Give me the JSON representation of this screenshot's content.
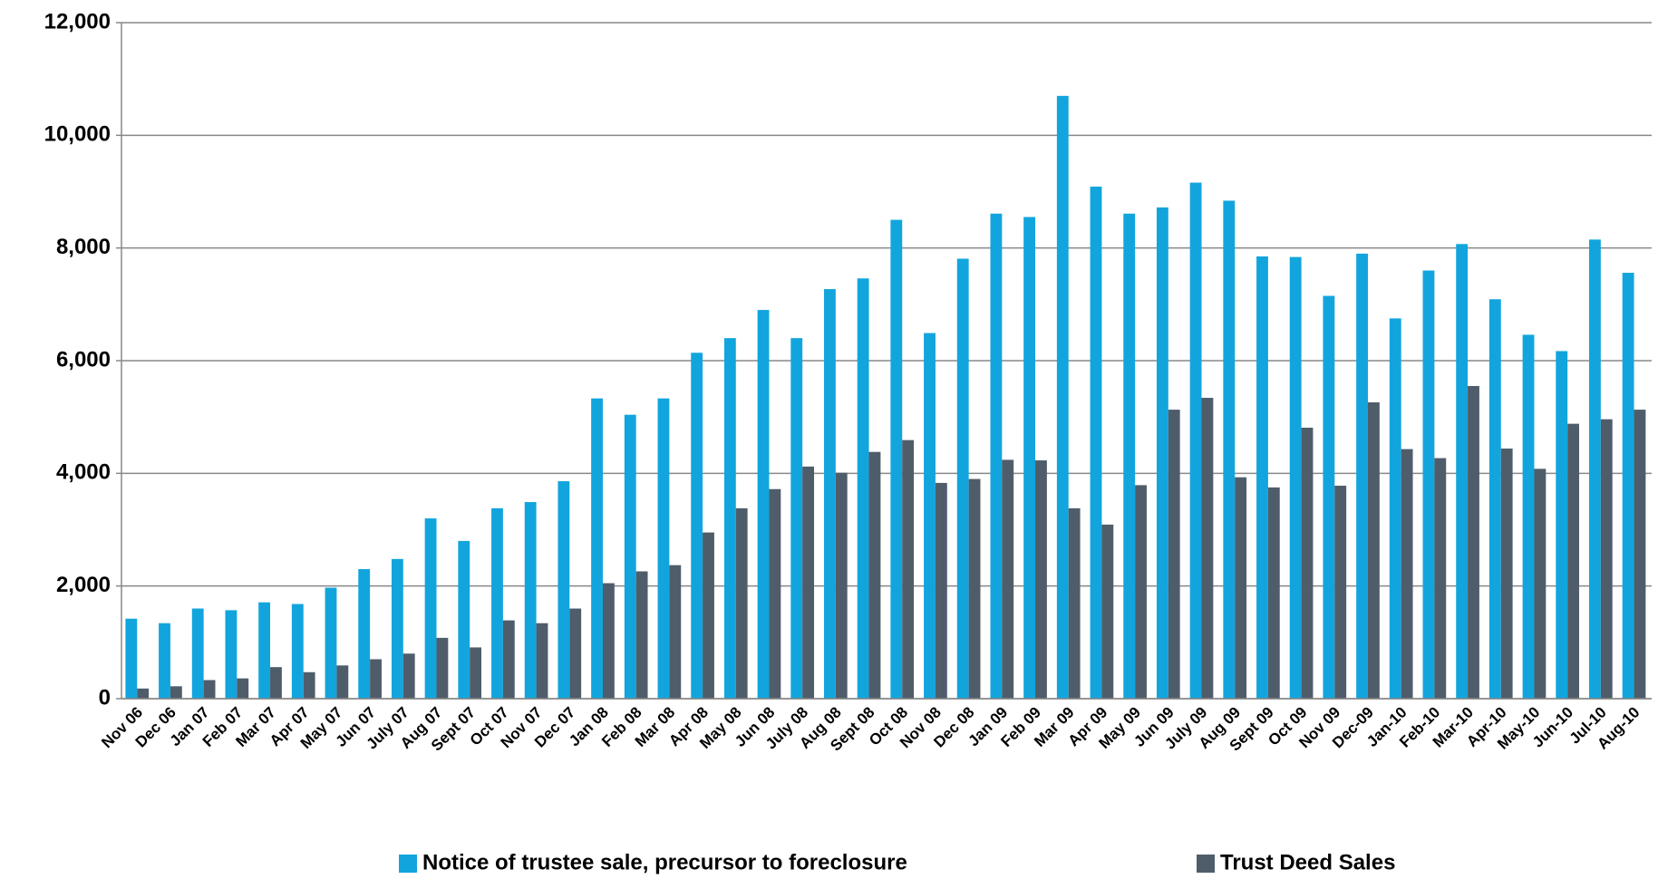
{
  "chart_data": {
    "type": "bar",
    "categories": [
      "Nov 06",
      "Dec 06",
      "Jan 07",
      "Feb 07",
      "Mar 07",
      "Apr 07",
      "May 07",
      "Jun 07",
      "July 07",
      "Aug 07",
      "Sept 07",
      "Oct 07",
      "Nov 07",
      "Dec 07",
      "Jan 08",
      "Feb 08",
      "Mar 08",
      "Apr 08",
      "May 08",
      "Jun 08",
      "July 08",
      "Aug 08",
      "Sept 08",
      "Oct 08",
      "Nov 08",
      "Dec 08",
      "Jan 09",
      "Feb 09",
      "Mar 09",
      "Apr 09",
      "May 09",
      "Jun 09",
      "July 09",
      "Aug 09",
      "Sept 09",
      "Oct 09",
      "Nov 09",
      "Dec-09",
      "Jan-10",
      "Feb-10",
      "Mar-10",
      "Apr-10",
      "May-10",
      "Jun-10",
      "Jul-10",
      "Aug-10"
    ],
    "series": [
      {
        "name": "Notice of trustee sale, precursor to foreclosure",
        "color": "#12a5dd",
        "values": [
          1420,
          1340,
          1600,
          1570,
          1710,
          1680,
          1970,
          2300,
          2480,
          3200,
          2800,
          3380,
          3490,
          3860,
          5330,
          5040,
          5330,
          6140,
          6400,
          6900,
          6400,
          7270,
          7460,
          8500,
          6490,
          7810,
          8610,
          8550,
          10700,
          9090,
          8610,
          8720,
          9160,
          8840,
          7850,
          7840,
          7150,
          7900,
          6750,
          7600,
          8070,
          7090,
          6460,
          6170,
          8150,
          7560
        ]
      },
      {
        "name": "Trust Deed Sales",
        "color": "#4f5d6b",
        "values": [
          180,
          220,
          330,
          360,
          560,
          470,
          590,
          700,
          800,
          1080,
          910,
          1390,
          1340,
          1600,
          2050,
          2260,
          2370,
          2950,
          3380,
          3720,
          4120,
          4010,
          4380,
          4590,
          3830,
          3900,
          4240,
          4230,
          3380,
          3090,
          3790,
          5130,
          5340,
          3930,
          3750,
          4810,
          3780,
          5260,
          4430,
          4270,
          5550,
          4440,
          4080,
          4880,
          4960,
          5130
        ]
      }
    ],
    "ylim": [
      0,
      12000
    ],
    "yticks": [
      0,
      {
        "value": 2000,
        "label": "2,000"
      },
      {
        "value": 4000,
        "label": "4,000"
      },
      {
        "value": 6000,
        "label": "6,000"
      },
      {
        "value": 8000,
        "label": "8,000"
      },
      {
        "value": 10000,
        "label": "10,000"
      },
      {
        "value": 12000,
        "label": "12,000"
      }
    ],
    "grid": true
  }
}
